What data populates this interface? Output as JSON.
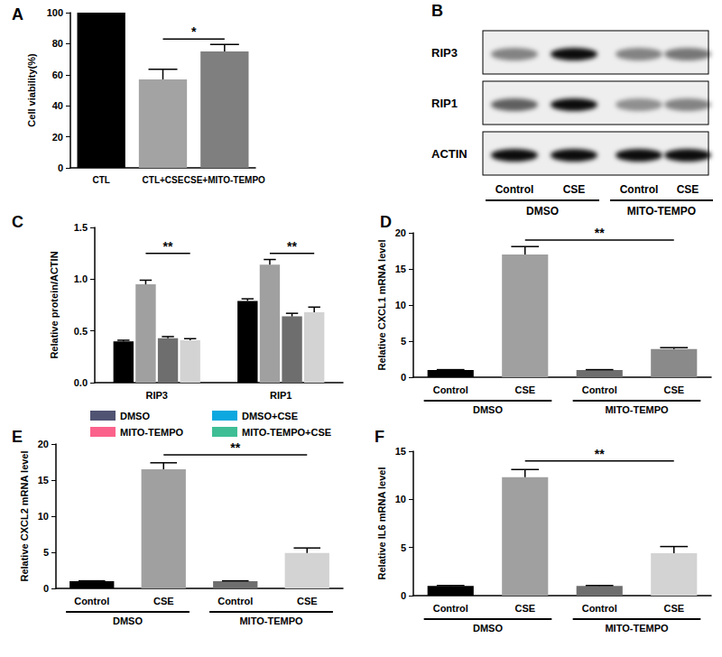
{
  "chart_data": [
    {
      "type": "bar",
      "title": "A",
      "categories": [
        "CTL",
        "CTL+CSE",
        "CSE+MITO-TEMPO"
      ],
      "values": [
        100,
        57,
        75
      ],
      "errors": [
        0,
        6.5,
        4.5
      ],
      "colors": [
        "#000000",
        "#a3a3a3",
        "#7f7f7f"
      ],
      "y_label": "Cell viability(%)",
      "ylim": [
        0,
        100
      ],
      "yticks": [
        0,
        20,
        40,
        60,
        80,
        100
      ],
      "grid": false,
      "annotations": [
        {
          "text": "*",
          "between": [
            1,
            2
          ],
          "y": 83
        }
      ]
    },
    {
      "type": "bar",
      "title": "C",
      "categories": [
        "RIP3",
        "RIP1"
      ],
      "series": [
        {
          "name": "DMSO",
          "color": "#000000",
          "values": [
            0.4,
            0.79
          ],
          "errors": [
            0.01,
            0.02
          ]
        },
        {
          "name": "DMSO+CSE",
          "color": "#a0a0a0",
          "values": [
            0.95,
            1.14
          ],
          "errors": [
            0.04,
            0.05
          ]
        },
        {
          "name": "MITO-TEMPO",
          "color": "#6e6e6e",
          "values": [
            0.43,
            0.64
          ],
          "errors": [
            0.015,
            0.03
          ]
        },
        {
          "name": "MITO-TEMPO+CSE",
          "color": "#d3d3d3",
          "values": [
            0.41,
            0.68
          ],
          "errors": [
            0.015,
            0.05
          ]
        }
      ],
      "y_label": "Relative protein/ACTIN",
      "ylim": [
        0,
        1.5
      ],
      "yticks": [
        {
          "value": 0,
          "label": "0.0"
        },
        {
          "value": 0.5,
          "label": "0.5"
        },
        {
          "value": 1,
          "label": "1.0"
        },
        {
          "value": 1.5,
          "label": "1.5"
        }
      ],
      "grid": false,
      "legend": "bottom",
      "annotations": [
        {
          "text": "**",
          "category": "RIP3",
          "between": [
            "DMSO+CSE",
            "MITO-TEMPO+CSE"
          ],
          "y": 1.25
        },
        {
          "text": "**",
          "category": "RIP1",
          "between": [
            "DMSO+CSE",
            "MITO-TEMPO+CSE"
          ],
          "y": 1.25
        }
      ]
    },
    {
      "type": "bar",
      "title": "D",
      "categories": [
        "Control",
        "CSE",
        "Control",
        "CSE"
      ],
      "values": [
        1,
        17,
        1,
        3.9
      ],
      "errors": [
        0.05,
        1.1,
        0.05,
        0.2
      ],
      "colors": [
        "#000000",
        "#a0a0a0",
        "#6e6e6e",
        "#8a8a8a"
      ],
      "y_label": "Relative CXCL1 mRNA level",
      "ylim": [
        0,
        20
      ],
      "yticks": [
        0,
        5,
        10,
        15,
        20
      ],
      "grid": false,
      "groups": [
        {
          "label": "DMSO",
          "span": [
            0,
            1
          ]
        },
        {
          "label": "MITO-TEMPO",
          "span": [
            2,
            3
          ]
        }
      ],
      "annotations": [
        {
          "text": "**",
          "between": [
            1,
            3
          ],
          "y": 19
        }
      ]
    },
    {
      "type": "bar",
      "title": "E",
      "categories": [
        "Control",
        "CSE",
        "Control",
        "CSE"
      ],
      "values": [
        1,
        16.5,
        1,
        4.9
      ],
      "errors": [
        0.05,
        0.9,
        0.05,
        0.7
      ],
      "colors": [
        "#000000",
        "#a0a0a0",
        "#6e6e6e",
        "#d3d3d3"
      ],
      "y_label": "Relative CXCL2 mRNA level",
      "ylim": [
        0,
        20
      ],
      "yticks": [
        0,
        5,
        10,
        15,
        20
      ],
      "grid": false,
      "groups": [
        {
          "label": "DMSO",
          "span": [
            0,
            1
          ]
        },
        {
          "label": "MITO-TEMPO",
          "span": [
            2,
            3
          ]
        }
      ],
      "annotations": [
        {
          "text": "**",
          "between": [
            1,
            3
          ],
          "y": 18.5
        }
      ]
    },
    {
      "type": "bar",
      "title": "F",
      "categories": [
        "Control",
        "CSE",
        "Control",
        "CSE"
      ],
      "values": [
        1,
        12.3,
        1,
        4.4
      ],
      "errors": [
        0.05,
        0.8,
        0.05,
        0.7
      ],
      "colors": [
        "#000000",
        "#a0a0a0",
        "#6e6e6e",
        "#d3d3d3"
      ],
      "y_label": "Relative IL6 mRNA level",
      "ylim": [
        0,
        15
      ],
      "yticks": [
        0,
        5,
        10,
        15
      ],
      "grid": false,
      "groups": [
        {
          "label": "DMSO",
          "span": [
            0,
            1
          ]
        },
        {
          "label": "MITO-TEMPO",
          "span": [
            2,
            3
          ]
        }
      ],
      "annotations": [
        {
          "text": "**",
          "between": [
            1,
            3
          ],
          "y": 14
        }
      ]
    }
  ],
  "blot": {
    "title": "B",
    "rows": [
      {
        "label": "RIP3",
        "intensity": [
          0.45,
          0.95,
          0.45,
          0.5
        ]
      },
      {
        "label": "RIP1",
        "intensity": [
          0.6,
          0.95,
          0.4,
          0.45
        ]
      },
      {
        "label": "ACTIN",
        "intensity": [
          0.95,
          0.95,
          0.95,
          0.95
        ]
      }
    ],
    "lanes": [
      "Control",
      "CSE",
      "Control",
      "CSE"
    ],
    "groups": [
      {
        "label": "DMSO",
        "span": [
          0,
          1
        ]
      },
      {
        "label": "MITO-TEMPO",
        "span": [
          2,
          3
        ]
      }
    ]
  }
}
